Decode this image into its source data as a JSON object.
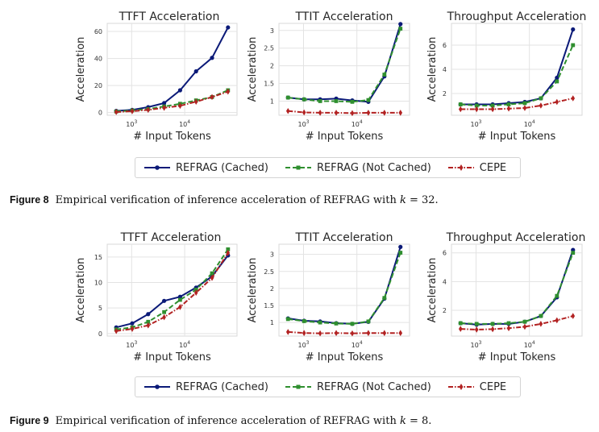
{
  "x_axis_label": "# Input Tokens",
  "y_axis_label": "Acceleration",
  "legend": [
    {
      "label": "REFRAG (Cached)",
      "color": "#0b1a78"
    },
    {
      "label": "REFRAG (Not Cached)",
      "color": "#2f8f2f"
    },
    {
      "label": "CEPE",
      "color": "#b22222"
    }
  ],
  "figures": [
    {
      "label": "Figure 8",
      "caption_pre": "Empirical verification of inference acceleration of REFRAG with ",
      "caption_var": "k",
      "caption_post": " = 32."
    },
    {
      "label": "Figure 9",
      "caption_pre": "Empirical verification of inference acceleration of REFRAG with ",
      "caption_var": "k",
      "caption_post": " = 8."
    }
  ],
  "chart_data": [
    {
      "type": "line",
      "panel": "fig8-ttft",
      "title": "TTFT Acceleration",
      "xlabel": "# Input Tokens",
      "ylabel": "Acceleration",
      "xscale": "log",
      "x": [
        512,
        1024,
        2048,
        4096,
        8192,
        16384,
        32768,
        65536
      ],
      "ylim": [
        -2,
        66
      ],
      "yticks": [
        0,
        20,
        40,
        60
      ],
      "xticks": [
        "10^3",
        "10^4"
      ],
      "series": [
        {
          "name": "REFRAG (Cached)",
          "values": [
            1.2,
            2.0,
            4.0,
            7.0,
            16.5,
            30.5,
            40.5,
            63.0
          ]
        },
        {
          "name": "REFRAG (Not Cached)",
          "values": [
            0.8,
            1.6,
            2.6,
            4.5,
            6.5,
            9.0,
            11.5,
            16.5
          ]
        },
        {
          "name": "CEPE",
          "values": [
            0.4,
            1.0,
            2.0,
            3.5,
            5.0,
            8.0,
            11.5,
            15.5
          ]
        }
      ]
    },
    {
      "type": "line",
      "panel": "fig8-ttit",
      "title": "TTIT Acceleration",
      "xlabel": "# Input Tokens",
      "ylabel": "Acceleration",
      "xscale": "log",
      "x": [
        512,
        1024,
        2048,
        4096,
        8192,
        16384,
        32768,
        65536
      ],
      "ylim": [
        0.6,
        3.2
      ],
      "yticks": [
        1.0,
        1.5,
        2.0,
        2.5,
        3.0
      ],
      "xticks": [
        "10^3",
        "10^4"
      ],
      "series": [
        {
          "name": "REFRAG (Cached)",
          "values": [
            1.1,
            1.05,
            1.05,
            1.07,
            1.02,
            0.98,
            1.7,
            3.18
          ]
        },
        {
          "name": "REFRAG (Not Cached)",
          "values": [
            1.1,
            1.05,
            1.0,
            1.0,
            0.98,
            1.03,
            1.75,
            3.05
          ]
        },
        {
          "name": "CEPE",
          "values": [
            0.72,
            0.68,
            0.67,
            0.67,
            0.66,
            0.67,
            0.67,
            0.67
          ]
        }
      ]
    },
    {
      "type": "line",
      "panel": "fig8-thr",
      "title": "Throughput Acceleration",
      "xlabel": "# Input Tokens",
      "ylabel": "Acceleration",
      "xscale": "log",
      "x": [
        512,
        1024,
        2048,
        4096,
        8192,
        16384,
        32768,
        65536
      ],
      "ylim": [
        0.2,
        7.8
      ],
      "yticks": [
        2,
        4,
        6
      ],
      "xticks": [
        "10^3",
        "10^4"
      ],
      "series": [
        {
          "name": "REFRAG (Cached)",
          "values": [
            1.1,
            1.1,
            1.1,
            1.2,
            1.3,
            1.6,
            3.3,
            7.3
          ]
        },
        {
          "name": "REFRAG (Not Cached)",
          "values": [
            1.1,
            1.0,
            1.0,
            1.1,
            1.2,
            1.6,
            3.0,
            6.0
          ]
        },
        {
          "name": "CEPE",
          "values": [
            0.7,
            0.7,
            0.7,
            0.75,
            0.8,
            1.0,
            1.3,
            1.6
          ]
        }
      ]
    },
    {
      "type": "line",
      "panel": "fig9-ttft",
      "title": "TTFT Acceleration",
      "xlabel": "# Input Tokens",
      "ylabel": "Acceleration",
      "xscale": "log",
      "x": [
        512,
        1024,
        2048,
        4096,
        8192,
        16384,
        32768,
        65536
      ],
      "ylim": [
        -0.5,
        17.5
      ],
      "yticks": [
        0,
        5,
        10,
        15
      ],
      "xticks": [
        "10^3",
        "10^4"
      ],
      "series": [
        {
          "name": "REFRAG (Cached)",
          "values": [
            1.2,
            2.0,
            3.8,
            6.4,
            7.2,
            9.0,
            11.2,
            15.3
          ]
        },
        {
          "name": "REFRAG (Not Cached)",
          "values": [
            0.8,
            1.2,
            2.3,
            4.2,
            6.6,
            8.6,
            11.8,
            16.5
          ]
        },
        {
          "name": "CEPE",
          "values": [
            0.5,
            0.9,
            1.6,
            3.2,
            5.2,
            8.0,
            10.9,
            15.8
          ]
        }
      ]
    },
    {
      "type": "line",
      "panel": "fig9-ttit",
      "title": "TTIT Acceleration",
      "xlabel": "# Input Tokens",
      "ylabel": "Acceleration",
      "xscale": "log",
      "x": [
        512,
        1024,
        2048,
        4096,
        8192,
        16384,
        32768,
        65536
      ],
      "ylim": [
        0.6,
        3.3
      ],
      "yticks": [
        1.0,
        1.5,
        2.0,
        2.5,
        3.0
      ],
      "xticks": [
        "10^3",
        "10^4"
      ],
      "series": [
        {
          "name": "REFRAG (Cached)",
          "values": [
            1.12,
            1.05,
            1.03,
            0.98,
            0.96,
            1.02,
            1.7,
            3.22
          ]
        },
        {
          "name": "REFRAG (Not Cached)",
          "values": [
            1.1,
            1.04,
            1.0,
            0.97,
            0.96,
            1.03,
            1.72,
            3.05
          ]
        },
        {
          "name": "CEPE",
          "values": [
            0.72,
            0.69,
            0.68,
            0.69,
            0.68,
            0.69,
            0.69,
            0.69
          ]
        }
      ]
    },
    {
      "type": "line",
      "panel": "fig9-thr",
      "title": "Throughput Acceleration",
      "xlabel": "# Input Tokens",
      "ylabel": "Acceleration",
      "xscale": "log",
      "x": [
        512,
        1024,
        2048,
        4096,
        8192,
        16384,
        32768,
        65536
      ],
      "ylim": [
        0.2,
        6.6
      ],
      "yticks": [
        2,
        4,
        6
      ],
      "xticks": [
        "10^3",
        "10^4"
      ],
      "series": [
        {
          "name": "REFRAG (Cached)",
          "values": [
            1.1,
            1.0,
            1.05,
            1.05,
            1.2,
            1.6,
            2.9,
            6.2
          ]
        },
        {
          "name": "REFRAG (Not Cached)",
          "values": [
            1.1,
            1.05,
            1.05,
            1.1,
            1.2,
            1.6,
            3.0,
            6.0
          ]
        },
        {
          "name": "CEPE",
          "values": [
            0.7,
            0.65,
            0.68,
            0.75,
            0.85,
            1.05,
            1.3,
            1.6
          ]
        }
      ]
    }
  ]
}
